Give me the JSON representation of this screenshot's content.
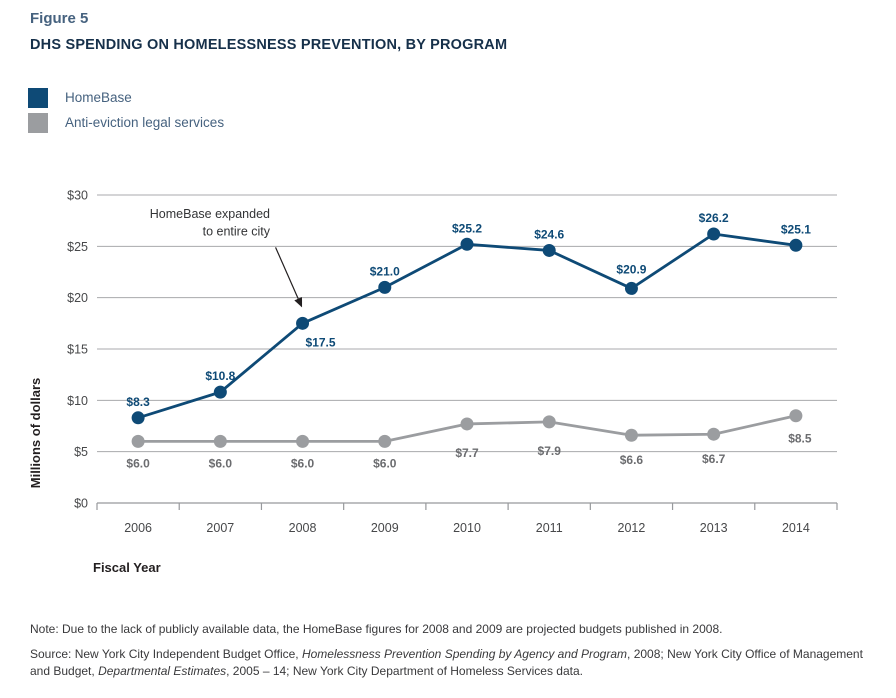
{
  "figure": {
    "label": "Figure 5",
    "title": "DHS SPENDING ON HOMELESSNESS PREVENTION, BY PROGRAM"
  },
  "legend": [
    {
      "name": "HomeBase",
      "color": "#0e4a76"
    },
    {
      "name": "Anti-eviction legal services",
      "color": "#9b9da0"
    }
  ],
  "chart_data": {
    "type": "line",
    "x": [
      "2006",
      "2007",
      "2008",
      "2009",
      "2010",
      "2011",
      "2012",
      "2013",
      "2014"
    ],
    "series": [
      {
        "name": "HomeBase",
        "color": "#0e4a76",
        "label_color": "#0e4a76",
        "values": [
          8.3,
          10.8,
          17.5,
          21.0,
          25.2,
          24.6,
          20.9,
          26.2,
          25.1
        ]
      },
      {
        "name": "Anti-eviction legal services",
        "color": "#9b9da0",
        "label_color": "#6b6c6f",
        "values": [
          6.0,
          6.0,
          6.0,
          6.0,
          7.7,
          7.9,
          6.6,
          6.7,
          8.5
        ]
      }
    ],
    "title": "DHS SPENDING ON HOMELESSNESS PREVENTION, BY PROGRAM",
    "xlabel": "Fiscal Year",
    "ylabel": "Millions of dollars",
    "ylim": [
      0,
      30
    ],
    "ytick_step": 5,
    "ytick_prefix": "$",
    "grid": true,
    "legend_position": "top-left",
    "annotation": {
      "lines": [
        "HomeBase expanded",
        "to entire city"
      ],
      "target_series": "HomeBase",
      "target_x": "2008"
    }
  },
  "notes": {
    "note": "Note: Due to the lack of publicly available data, the HomeBase figures for 2008 and 2009 are projected budgets published in 2008.",
    "source_parts": [
      {
        "text": "Source: New York City Independent Budget Office, "
      },
      {
        "text": "Homelessness Prevention Spending by Agency and Program",
        "italic": true
      },
      {
        "text": ", 2008; New York City Office of Management"
      },
      {
        "break": true
      },
      {
        "text": "and Budget, "
      },
      {
        "text": "Departmental Estimates",
        "italic": true
      },
      {
        "text": ", 2005 – 14; New York City Department of Homeless Services data."
      }
    ]
  },
  "colors": {
    "accent_blue": "#0e4a76",
    "series_gray": "#9b9da0",
    "heading_blue_gray": "#46627f",
    "title_dark": "#16304a",
    "gridline": "#a8aaac",
    "axis_text": "#47484a",
    "annotation_text": "#333436"
  }
}
